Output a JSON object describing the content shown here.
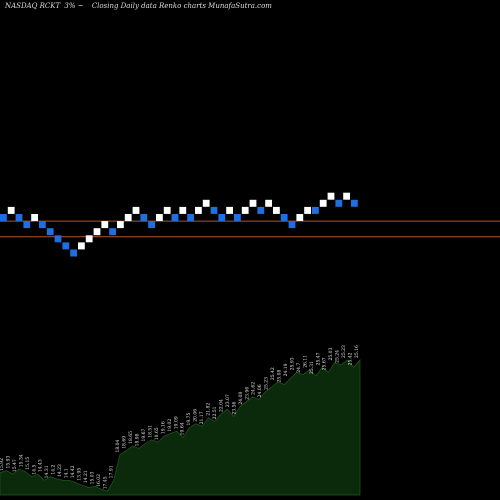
{
  "header": {
    "ticker": "NASDAQ RCKT",
    "change": "3%",
    "arrow": "~",
    "caption": "Closing Daily data  Renko  charts MunafaSutra.com"
  },
  "chart_data": {
    "type": "renko",
    "colors": {
      "background": "#000000",
      "up_brick": "#ffffff",
      "down_brick": "#1e6fe0",
      "line": "#b0552b",
      "volume_fill": "#0b2a0b",
      "volume_edge": "#1f5a1f"
    },
    "bricks": [
      {
        "dir": "down",
        "level": 30
      },
      {
        "dir": "up",
        "level": 31
      },
      {
        "dir": "down",
        "level": 30
      },
      {
        "dir": "down",
        "level": 29
      },
      {
        "dir": "up",
        "level": 30
      },
      {
        "dir": "down",
        "level": 29
      },
      {
        "dir": "down",
        "level": 28
      },
      {
        "dir": "down",
        "level": 27
      },
      {
        "dir": "down",
        "level": 26
      },
      {
        "dir": "down",
        "level": 25
      },
      {
        "dir": "up",
        "level": 26
      },
      {
        "dir": "up",
        "level": 27
      },
      {
        "dir": "up",
        "level": 28
      },
      {
        "dir": "up",
        "level": 29
      },
      {
        "dir": "down",
        "level": 28
      },
      {
        "dir": "up",
        "level": 29
      },
      {
        "dir": "up",
        "level": 30
      },
      {
        "dir": "up",
        "level": 31
      },
      {
        "dir": "down",
        "level": 30
      },
      {
        "dir": "down",
        "level": 29
      },
      {
        "dir": "up",
        "level": 30
      },
      {
        "dir": "up",
        "level": 31
      },
      {
        "dir": "down",
        "level": 30
      },
      {
        "dir": "up",
        "level": 31
      },
      {
        "dir": "down",
        "level": 30
      },
      {
        "dir": "up",
        "level": 31
      },
      {
        "dir": "up",
        "level": 32
      },
      {
        "dir": "down",
        "level": 31
      },
      {
        "dir": "down",
        "level": 30
      },
      {
        "dir": "up",
        "level": 31
      },
      {
        "dir": "down",
        "level": 30
      },
      {
        "dir": "up",
        "level": 31
      },
      {
        "dir": "up",
        "level": 32
      },
      {
        "dir": "down",
        "level": 31
      },
      {
        "dir": "up",
        "level": 32
      },
      {
        "dir": "up",
        "level": 31
      },
      {
        "dir": "down",
        "level": 30
      },
      {
        "dir": "down",
        "level": 29
      },
      {
        "dir": "up",
        "level": 30
      },
      {
        "dir": "up",
        "level": 31
      },
      {
        "dir": "down",
        "level": 31
      },
      {
        "dir": "up",
        "level": 32
      },
      {
        "dir": "up",
        "level": 33
      },
      {
        "dir": "down",
        "level": 32
      },
      {
        "dir": "up",
        "level": 33
      },
      {
        "dir": "down",
        "level": 32
      }
    ],
    "reference_lines": [
      {
        "level": 29.5
      },
      {
        "level": 27.3
      }
    ],
    "price_labels": [
      "15.92",
      "15.93",
      "15.47",
      "15.34",
      "15.15",
      "14.5",
      "14.43",
      "14.31",
      "14.2",
      "14.23",
      "14.1",
      "14.42",
      "13.95",
      "14.21",
      "15.03",
      "16.02",
      "17.45",
      "17.91",
      "18.04",
      "18.69",
      "18.65",
      "18.98",
      "19.67",
      "18.51",
      "18.65",
      "19.16",
      "19.02",
      "19.09",
      "19.64",
      "19.75",
      "20.06",
      "21.17",
      "21.82",
      "22.51",
      "22.04",
      "23.07",
      "23.56",
      "24.08",
      "23.96",
      "24.62",
      "24.06",
      "25.23",
      "25.42",
      "25.08",
      "24.19",
      "25.93",
      "24.7",
      "26.11",
      "25.31",
      "25.47",
      "25.67",
      "25.03",
      "25.24",
      "25.23",
      "25.42",
      "25.16"
    ],
    "volume": [
      18,
      20,
      17,
      21,
      19,
      15,
      17,
      12,
      15,
      13,
      12,
      12,
      10,
      8,
      6,
      7,
      5,
      3,
      12,
      33,
      36,
      40,
      38,
      42,
      45,
      43,
      48,
      50,
      52,
      47,
      55,
      58,
      56,
      63,
      60,
      66,
      70,
      64,
      72,
      76,
      80,
      78,
      84,
      88,
      92,
      90,
      95,
      100,
      98,
      102,
      97,
      104,
      100,
      108,
      106,
      110,
      104,
      110
    ]
  }
}
